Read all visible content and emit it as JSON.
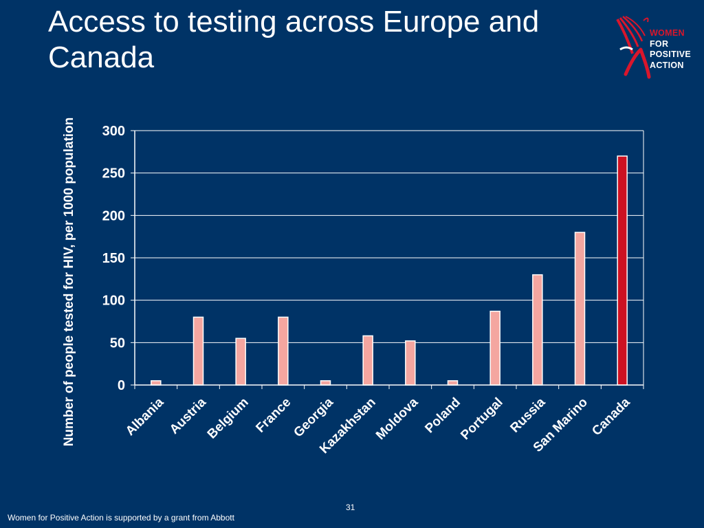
{
  "slide": {
    "title": "Access to testing across Europe and Canada",
    "footer": "Women for Positive Action is supported by a grant from Abbott",
    "page_number": "31"
  },
  "logo": {
    "line1": "WOMEN",
    "line2": "FOR",
    "line3": "POSITIVE",
    "line4": "ACTION",
    "accent_color": "#d9162c"
  },
  "colors": {
    "background": "#003366",
    "bar": "#f4a6a0",
    "bar_highlight": "#cc1122",
    "axis": "#ffffff"
  },
  "chart_data": {
    "type": "bar",
    "title": "",
    "xlabel": "",
    "ylabel": "Number of people tested for HIV, per 1000 population",
    "categories": [
      "Albania",
      "Austria",
      "Belgium",
      "France",
      "Georgia",
      "Kazakhstan",
      "Moldova",
      "Poland",
      "Portugal",
      "Russia",
      "San Marino",
      "Canada"
    ],
    "values": [
      5,
      80,
      55,
      80,
      5,
      58,
      52,
      5,
      87,
      130,
      180,
      270
    ],
    "highlight": "Canada",
    "ylim": [
      0,
      300
    ],
    "yticks": [
      0,
      50,
      100,
      150,
      200,
      250,
      300
    ],
    "grid": true,
    "legend": "none"
  }
}
